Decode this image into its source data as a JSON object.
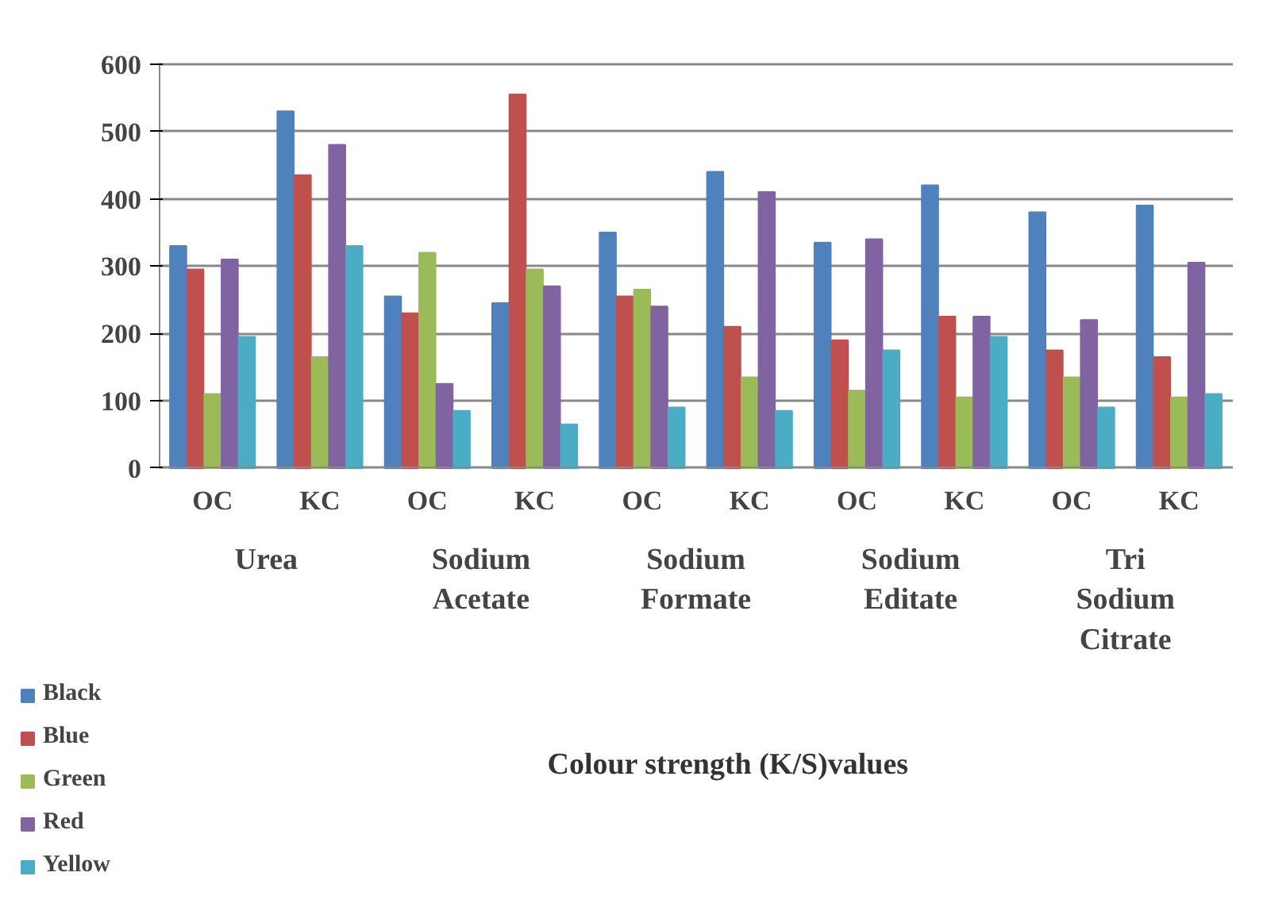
{
  "chart_data": {
    "type": "bar",
    "categories": [
      "OC",
      "KC",
      "OC",
      "KC",
      "OC",
      "KC",
      "OC",
      "KC",
      "OC",
      "KC"
    ],
    "annotations": [
      "Urea",
      "Sodium Acetate",
      "Sodium Formate",
      "Sodium Editate",
      "Tri Sodium Citrate",
      "Colour strength (K/S)values"
    ],
    "series": [
      {
        "name": "Black",
        "color": "#4f81bd",
        "values": [
          330,
          530,
          255,
          245,
          350,
          440,
          335,
          420,
          380,
          390
        ]
      },
      {
        "name": "Blue",
        "color": "#c0504d",
        "values": [
          295,
          435,
          230,
          555,
          255,
          210,
          190,
          225,
          175,
          165
        ]
      },
      {
        "name": "Green",
        "color": "#9bbb59",
        "values": [
          110,
          165,
          320,
          295,
          265,
          135,
          115,
          105,
          135,
          105
        ]
      },
      {
        "name": "Red",
        "color": "#8064a2",
        "values": [
          310,
          480,
          125,
          270,
          240,
          410,
          340,
          225,
          220,
          305
        ]
      },
      {
        "name": "Yellow",
        "color": "#4bacc6",
        "values": [
          195,
          330,
          85,
          65,
          90,
          85,
          175,
          195,
          90,
          110
        ]
      }
    ],
    "ylim": [
      0,
      600
    ],
    "yticks": [
      0,
      100,
      200,
      300,
      400,
      500,
      600
    ],
    "grid": "y",
    "legend": "bottom left"
  }
}
